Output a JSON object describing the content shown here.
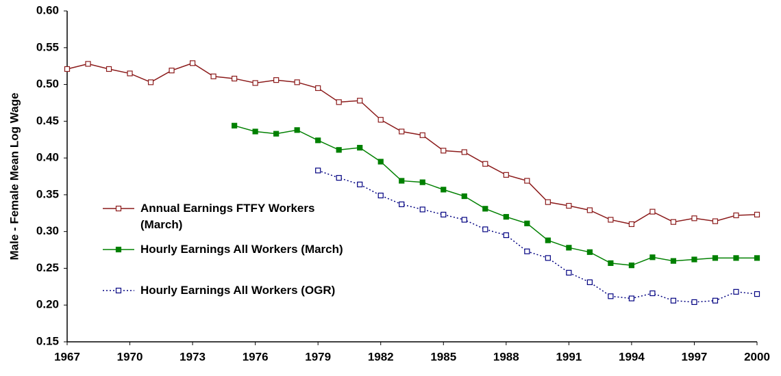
{
  "chart_data": {
    "type": "line",
    "y_label": "Male - Female Mean Log Wage",
    "x": [
      1967,
      1968,
      1969,
      1970,
      1971,
      1972,
      1973,
      1974,
      1975,
      1976,
      1977,
      1978,
      1979,
      1980,
      1981,
      1982,
      1983,
      1984,
      1985,
      1986,
      1987,
      1988,
      1989,
      1990,
      1991,
      1992,
      1993,
      1994,
      1995,
      1996,
      1997,
      1998,
      1999,
      2000
    ],
    "series": [
      {
        "name": "Annual Earnings FTFY Workers (March)",
        "color": "#8b1a1a",
        "marker_fill": false,
        "dashed": false,
        "values": [
          0.521,
          0.528,
          0.521,
          0.515,
          0.503,
          0.519,
          0.529,
          0.511,
          0.508,
          0.502,
          0.506,
          0.503,
          0.495,
          0.476,
          0.478,
          0.452,
          0.436,
          0.431,
          0.41,
          0.408,
          0.392,
          0.377,
          0.369,
          0.34,
          0.335,
          0.329,
          0.316,
          0.31,
          0.327,
          0.313,
          0.318,
          0.314,
          0.322,
          0.323
        ]
      },
      {
        "name": "Hourly Earnings All Workers (March)",
        "color": "#008000",
        "marker_fill": true,
        "dashed": false,
        "values": [
          null,
          null,
          null,
          null,
          null,
          null,
          null,
          null,
          0.444,
          0.436,
          0.433,
          0.438,
          0.424,
          0.411,
          0.414,
          0.395,
          0.369,
          0.367,
          0.357,
          0.348,
          0.331,
          0.32,
          0.311,
          0.288,
          0.278,
          0.272,
          0.257,
          0.254,
          0.265,
          0.26,
          0.262,
          0.264,
          0.264,
          0.264
        ]
      },
      {
        "name": "Hourly Earnings All Workers (OGR)",
        "color": "#000080",
        "marker_fill": false,
        "dashed": true,
        "values": [
          null,
          null,
          null,
          null,
          null,
          null,
          null,
          null,
          null,
          null,
          null,
          null,
          0.383,
          0.373,
          0.364,
          0.349,
          0.337,
          0.33,
          0.323,
          0.316,
          0.303,
          0.295,
          0.273,
          0.264,
          0.244,
          0.231,
          0.212,
          0.209,
          0.216,
          0.206,
          0.204,
          0.206,
          0.218,
          0.215
        ]
      }
    ],
    "xlim": [
      1967,
      2000
    ],
    "xticks": [
      1967,
      1970,
      1973,
      1976,
      1979,
      1982,
      1985,
      1988,
      1991,
      1994,
      1997,
      2000
    ],
    "ylim": [
      0.15,
      0.6
    ],
    "yticks": [
      0.15,
      {
        "value": 0.2,
        "label": "0.20"
      },
      0.25,
      {
        "value": 0.3,
        "label": "0.30"
      },
      0.35,
      {
        "value": 0.4,
        "label": "0.40"
      },
      0.45,
      {
        "value": 0.5,
        "label": "0.50"
      },
      0.55,
      {
        "value": 0.6,
        "label": "0.60"
      }
    ],
    "grid": false
  }
}
